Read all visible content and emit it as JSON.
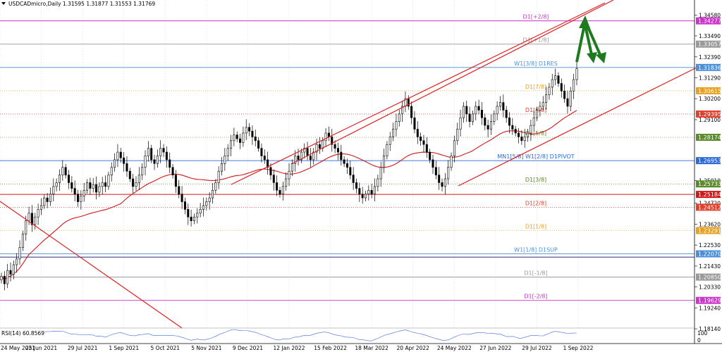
{
  "header": {
    "symbol_line": "USDCADmicro,Daily  1.31595 1.31877 1.31553 1.31769"
  },
  "indicator": {
    "label": "RSI(14) 60.8569",
    "scale_top": "100",
    "scale_bottom": "0"
  },
  "colors": {
    "candle": "#000000",
    "trend": "#e02020",
    "ma": "#d01818",
    "arrow": "#1e7a1e",
    "grid": "#d8d8d8"
  },
  "chart_data": {
    "type": "candlestick",
    "ylim": [
      1.1818,
      1.3537
    ],
    "x_ticks": [
      "24 May 2021",
      "25 Jun 2021",
      "29 Jul 2021",
      "1 Sep 2021",
      "5 Oct 2021",
      "5 Nov 2021",
      "9 Dec 2021",
      "12 Jan 2022",
      "15 Feb 2022",
      "18 Mar 2022",
      "20 Apr 2022",
      "24 May 2022",
      "27 Jun 2022",
      "29 Jul 2022",
      "1 Sep 2022"
    ],
    "y_ticks": [
      "1.34580",
      "1.33490",
      "1.32390",
      "1.31290",
      "1.30200",
      "1.29100",
      "1.25910",
      "1.24720",
      "1.23620",
      "1.22530",
      "1.21430",
      "1.20330",
      "1.19240",
      "1.18140"
    ],
    "levels": [
      {
        "label": "D1[+2/8]",
        "price": 1.34277,
        "tag": "1.34277",
        "color": "#cc33cc",
        "style": "solid"
      },
      {
        "label": "D1[+1/8]",
        "price": 1.33057,
        "tag": "1.33057",
        "color": "#999999",
        "style": "solid"
      },
      {
        "label": "W1[3/8] D1RES",
        "price": 1.31836,
        "tag": "1.31836",
        "color": "#4a8fd8",
        "style": "solid"
      },
      {
        "label": "D1[7/8]",
        "price": 1.30615,
        "tag": "1.30615",
        "color": "#e8a020",
        "style": "dotted"
      },
      {
        "label": "D1[6/8]",
        "price": 1.29395,
        "tag": "1.29395",
        "color": "#e0402a",
        "style": "dotted"
      },
      {
        "label": "D1[5/8]",
        "price": 1.28174,
        "tag": "1.28174",
        "color": "#5a8a2a",
        "style": "dotted"
      },
      {
        "label": "MN1[5/8] W1[2/8] D1PIVOT",
        "price": 1.26953,
        "tag": "1.26953",
        "color": "#2a6ad8",
        "style": "solid"
      },
      {
        "label": "D1[3/8]",
        "price": 1.25733,
        "tag": "1.25733",
        "color": "#5a8a2a",
        "style": "dotted"
      },
      {
        "label": "",
        "price": 1.25184,
        "tag": "1.25184",
        "color": "#d01818",
        "style": "solid"
      },
      {
        "label": "D1[2/8]",
        "price": 1.24512,
        "tag": "1.24512",
        "color": "#e0402a",
        "style": "dotted"
      },
      {
        "label": "D1[1/8]",
        "price": 1.23291,
        "tag": "1.23291",
        "color": "#e8a020",
        "style": "dotted"
      },
      {
        "label": "W1[1/8] D1SUP",
        "price": 1.2207,
        "tag": "1.22070",
        "color": "#4a8fd8",
        "style": "solid"
      },
      {
        "label": "",
        "price": 1.219,
        "tag": "",
        "color": "#101060",
        "style": "solid"
      },
      {
        "label": "D1[-1/8]",
        "price": 1.2085,
        "tag": "1.20850",
        "color": "#999999",
        "style": "solid"
      },
      {
        "label": "D1[-2/8]",
        "price": 1.19629,
        "tag": "1.19629",
        "color": "#cc33cc",
        "style": "solid"
      }
    ],
    "closes": [
      1.209,
      1.205,
      1.212,
      1.21,
      1.215,
      1.218,
      1.224,
      1.231,
      1.238,
      1.242,
      1.236,
      1.24,
      1.244,
      1.246,
      1.25,
      1.248,
      1.252,
      1.256,
      1.258,
      1.262,
      1.266,
      1.262,
      1.258,
      1.255,
      1.252,
      1.248,
      1.251,
      1.254,
      1.258,
      1.255,
      1.257,
      1.253,
      1.256,
      1.258,
      1.256,
      1.262,
      1.266,
      1.27,
      1.274,
      1.271,
      1.268,
      1.264,
      1.26,
      1.256,
      1.258,
      1.262,
      1.266,
      1.272,
      1.276,
      1.27,
      1.268,
      1.272,
      1.276,
      1.274,
      1.27,
      1.266,
      1.262,
      1.256,
      1.252,
      1.248,
      1.244,
      1.24,
      1.238,
      1.24,
      1.242,
      1.244,
      1.246,
      1.248,
      1.25,
      1.254,
      1.258,
      1.264,
      1.268,
      1.272,
      1.276,
      1.28,
      1.283,
      1.281,
      1.279,
      1.284,
      1.287,
      1.285,
      1.282,
      1.28,
      1.276,
      1.272,
      1.27,
      1.266,
      1.262,
      1.258,
      1.254,
      1.252,
      1.256,
      1.26,
      1.264,
      1.268,
      1.272,
      1.27,
      1.274,
      1.276,
      1.272,
      1.27,
      1.274,
      1.278,
      1.276,
      1.28,
      1.284,
      1.282,
      1.278,
      1.276,
      1.274,
      1.27,
      1.268,
      1.266,
      1.262,
      1.258,
      1.255,
      1.252,
      1.25,
      1.252,
      1.254,
      1.252,
      1.256,
      1.26,
      1.266,
      1.272,
      1.278,
      1.282,
      1.286,
      1.29,
      1.294,
      1.298,
      1.302,
      1.298,
      1.292,
      1.286,
      1.282,
      1.28,
      1.278,
      1.274,
      1.27,
      1.266,
      1.262,
      1.258,
      1.256,
      1.26,
      1.266,
      1.272,
      1.28,
      1.286,
      1.292,
      1.298,
      1.294,
      1.29,
      1.294,
      1.298,
      1.296,
      1.292,
      1.288,
      1.286,
      1.29,
      1.294,
      1.298,
      1.3,
      1.296,
      1.292,
      1.288,
      1.286,
      1.284,
      1.282,
      1.28,
      1.282,
      1.284,
      1.288,
      1.292,
      1.296,
      1.298,
      1.3,
      1.304,
      1.308,
      1.312,
      1.314,
      1.31,
      1.306,
      1.302,
      1.298,
      1.306,
      1.312,
      1.3177
    ],
    "annotations": [
      "upward channel",
      "ascending support line",
      "descending trend line",
      "moving average",
      "projection arrows"
    ]
  }
}
